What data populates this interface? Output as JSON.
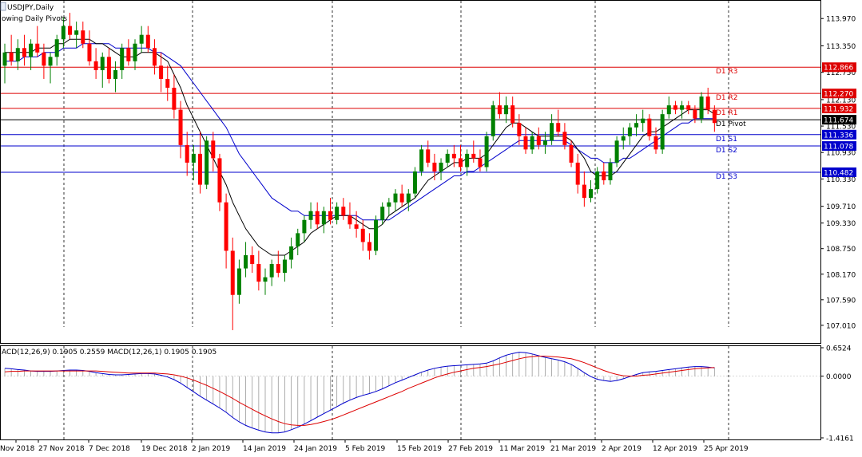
{
  "header": {
    "symbol_label": "USDJPY,Daily",
    "indicator_label": "owing Daily Pivots"
  },
  "macd_label": "ACD(12,26,9) 0.1905 0.2559 MACD(12,26,1) 0.1905 0.1905",
  "colors": {
    "bull": "#008000",
    "bear": "#ff0000",
    "resistance": "#dd0000",
    "support": "#0000cc",
    "ma_fast": "#000000",
    "ma_slow": "#0000cc",
    "macd_line": "#0000cc",
    "signal_line": "#dd0000",
    "histogram": "#9a9a9a"
  },
  "chart_data": {
    "type": "candlestick",
    "price_axis_ticks": [
      "113.970",
      "113.350",
      "112.750",
      "112.130",
      "111.530",
      "110.930",
      "110.330",
      "109.710",
      "109.330",
      "108.750",
      "108.170",
      "107.590",
      "107.010"
    ],
    "date_labels": [
      "Nov 2018",
      "27 Nov 2018",
      "7 Dec 2018",
      "19 Dec 2018",
      "2 Jan 2019",
      "14 Jan 2019",
      "24 Jan 2019",
      "5 Feb 2019",
      "15 Feb 2019",
      "27 Feb 2019",
      "11 Mar 2019",
      "21 Mar 2019",
      "2 Apr 2019",
      "12 Apr 2019",
      "25 Apr 2019"
    ],
    "pivots": [
      {
        "name": "D1 R3",
        "value": 112.866,
        "label": "112.866",
        "kind": "resistance"
      },
      {
        "name": "D1 R2",
        "value": 112.27,
        "label": "112.270",
        "kind": "resistance"
      },
      {
        "name": "D1 R1",
        "value": 111.932,
        "label": "111.932",
        "kind": "resistance"
      },
      {
        "name": "D1 Pivot",
        "value": 111.674,
        "label": "111.674",
        "kind": "pivot"
      },
      {
        "name": "D1 S1",
        "value": 111.336,
        "label": "111.336",
        "kind": "support"
      },
      {
        "name": "D1 S2",
        "value": 111.078,
        "label": "111.078",
        "kind": "support"
      },
      {
        "name": "D1 S3",
        "value": 110.482,
        "label": "110.482",
        "kind": "support"
      }
    ],
    "macd_axis_ticks": [
      "0.6524",
      "0.0000",
      "-1.4161"
    ],
    "macd_ylim": [
      -1.4161,
      0.6524
    ],
    "ylim": [
      106.7,
      114.3
    ],
    "candles": [
      [
        112.9,
        113.4,
        112.5,
        113.2
      ],
      [
        113.2,
        113.6,
        112.9,
        113.0
      ],
      [
        113.0,
        113.5,
        112.8,
        113.3
      ],
      [
        113.3,
        113.6,
        112.9,
        113.1
      ],
      [
        113.1,
        113.5,
        112.8,
        113.4
      ],
      [
        113.4,
        113.8,
        113.1,
        113.2
      ],
      [
        113.2,
        113.4,
        112.6,
        112.9
      ],
      [
        112.9,
        113.2,
        112.5,
        113.1
      ],
      [
        113.1,
        113.6,
        112.9,
        113.5
      ],
      [
        113.5,
        114.0,
        113.3,
        113.8
      ],
      [
        113.8,
        114.1,
        113.5,
        113.6
      ],
      [
        113.6,
        113.9,
        113.3,
        113.7
      ],
      [
        113.7,
        113.9,
        113.3,
        113.4
      ],
      [
        113.4,
        113.7,
        112.9,
        113.0
      ],
      [
        113.0,
        113.3,
        112.6,
        112.8
      ],
      [
        112.8,
        113.2,
        112.4,
        113.1
      ],
      [
        113.1,
        113.3,
        112.5,
        112.6
      ],
      [
        112.6,
        113.0,
        112.3,
        112.8
      ],
      [
        112.8,
        113.4,
        112.6,
        113.3
      ],
      [
        113.3,
        113.5,
        112.9,
        113.0
      ],
      [
        113.0,
        113.5,
        112.8,
        113.4
      ],
      [
        113.4,
        113.8,
        113.2,
        113.6
      ],
      [
        113.6,
        113.8,
        113.2,
        113.3
      ],
      [
        113.3,
        113.5,
        112.7,
        112.9
      ],
      [
        112.9,
        113.2,
        112.3,
        112.6
      ],
      [
        112.6,
        112.9,
        112.1,
        112.4
      ],
      [
        112.4,
        112.7,
        111.7,
        111.9
      ],
      [
        111.9,
        112.1,
        110.8,
        111.1
      ],
      [
        111.1,
        111.4,
        110.4,
        110.7
      ],
      [
        110.7,
        111.1,
        110.3,
        110.9
      ],
      [
        110.9,
        111.4,
        110.0,
        110.2
      ],
      [
        110.2,
        111.3,
        110.1,
        111.2
      ],
      [
        111.2,
        111.4,
        110.5,
        110.8
      ],
      [
        110.8,
        110.9,
        109.6,
        109.8
      ],
      [
        109.8,
        110.0,
        108.3,
        108.7
      ],
      [
        108.7,
        109.0,
        106.9,
        107.7
      ],
      [
        107.7,
        108.5,
        107.5,
        108.3
      ],
      [
        108.3,
        108.9,
        108.1,
        108.6
      ],
      [
        108.6,
        108.8,
        108.2,
        108.4
      ],
      [
        108.4,
        108.7,
        107.8,
        108.0
      ],
      [
        108.0,
        108.3,
        107.7,
        108.1
      ],
      [
        108.1,
        108.5,
        107.9,
        108.4
      ],
      [
        108.4,
        108.7,
        108.1,
        108.2
      ],
      [
        108.2,
        108.6,
        108.0,
        108.5
      ],
      [
        108.5,
        109.0,
        108.3,
        108.8
      ],
      [
        108.8,
        109.2,
        108.6,
        109.1
      ],
      [
        109.1,
        109.5,
        108.9,
        109.4
      ],
      [
        109.4,
        109.8,
        109.2,
        109.6
      ],
      [
        109.6,
        109.8,
        109.2,
        109.3
      ],
      [
        109.3,
        109.7,
        109.1,
        109.6
      ],
      [
        109.6,
        109.9,
        109.3,
        109.4
      ],
      [
        109.4,
        109.8,
        109.3,
        109.7
      ],
      [
        109.7,
        109.9,
        109.4,
        109.5
      ],
      [
        109.5,
        109.8,
        109.2,
        109.3
      ],
      [
        109.3,
        109.6,
        109.0,
        109.2
      ],
      [
        109.2,
        109.4,
        108.7,
        108.9
      ],
      [
        108.9,
        109.1,
        108.5,
        108.7
      ],
      [
        108.7,
        109.5,
        108.6,
        109.4
      ],
      [
        109.4,
        109.8,
        109.3,
        109.7
      ],
      [
        109.7,
        109.9,
        109.5,
        109.8
      ],
      [
        109.8,
        110.1,
        109.6,
        110.0
      ],
      [
        110.0,
        110.2,
        109.7,
        109.8
      ],
      [
        109.8,
        110.1,
        109.6,
        110.0
      ],
      [
        110.0,
        110.6,
        109.9,
        110.5
      ],
      [
        110.5,
        111.1,
        110.4,
        111.0
      ],
      [
        111.0,
        111.2,
        110.6,
        110.7
      ],
      [
        110.7,
        110.9,
        110.3,
        110.5
      ],
      [
        110.5,
        110.8,
        110.3,
        110.7
      ],
      [
        110.7,
        111.0,
        110.6,
        110.9
      ],
      [
        110.9,
        111.1,
        110.6,
        110.8
      ],
      [
        110.8,
        111.1,
        110.5,
        110.6
      ],
      [
        110.6,
        111.0,
        110.4,
        110.9
      ],
      [
        110.9,
        111.2,
        110.7,
        110.8
      ],
      [
        110.8,
        111.0,
        110.5,
        110.6
      ],
      [
        110.6,
        111.4,
        110.5,
        111.3
      ],
      [
        111.3,
        112.1,
        111.2,
        112.0
      ],
      [
        112.0,
        112.3,
        111.7,
        111.8
      ],
      [
        111.8,
        112.2,
        111.6,
        112.0
      ],
      [
        112.0,
        112.2,
        111.5,
        111.6
      ],
      [
        111.6,
        111.8,
        111.1,
        111.3
      ],
      [
        111.3,
        111.5,
        110.9,
        111.0
      ],
      [
        111.0,
        111.4,
        110.9,
        111.3
      ],
      [
        111.3,
        111.5,
        111.0,
        111.1
      ],
      [
        111.1,
        111.4,
        110.9,
        111.2
      ],
      [
        111.2,
        111.8,
        111.1,
        111.6
      ],
      [
        111.6,
        111.9,
        111.3,
        111.4
      ],
      [
        111.4,
        111.6,
        111.0,
        111.1
      ],
      [
        111.1,
        111.2,
        110.6,
        110.7
      ],
      [
        110.7,
        110.9,
        110.0,
        110.2
      ],
      [
        110.2,
        110.5,
        109.7,
        109.9
      ],
      [
        109.9,
        110.3,
        109.8,
        110.1
      ],
      [
        110.1,
        110.6,
        110.0,
        110.5
      ],
      [
        110.5,
        110.7,
        110.2,
        110.3
      ],
      [
        110.3,
        110.8,
        110.2,
        110.7
      ],
      [
        110.7,
        111.3,
        110.6,
        111.2
      ],
      [
        111.2,
        111.5,
        111.0,
        111.3
      ],
      [
        111.3,
        111.6,
        111.1,
        111.5
      ],
      [
        111.5,
        111.8,
        111.3,
        111.6
      ],
      [
        111.6,
        111.9,
        111.4,
        111.7
      ],
      [
        111.7,
        111.8,
        111.2,
        111.3
      ],
      [
        111.3,
        111.5,
        110.9,
        111.0
      ],
      [
        111.0,
        111.9,
        110.9,
        111.8
      ],
      [
        111.8,
        112.2,
        111.7,
        112.0
      ],
      [
        112.0,
        112.1,
        111.8,
        111.9
      ],
      [
        111.9,
        112.1,
        111.7,
        112.0
      ],
      [
        112.0,
        112.1,
        111.8,
        111.9
      ],
      [
        111.9,
        112.0,
        111.6,
        111.7
      ],
      [
        111.7,
        112.3,
        111.6,
        112.2
      ],
      [
        112.2,
        112.4,
        111.8,
        111.9
      ],
      [
        111.9,
        112.0,
        111.4,
        111.6
      ]
    ],
    "ma_fast": [
      113.2,
      113.2,
      113.2,
      113.2,
      113.2,
      113.3,
      113.3,
      113.3,
      113.4,
      113.4,
      113.5,
      113.5,
      113.5,
      113.5,
      113.4,
      113.4,
      113.3,
      113.2,
      113.1,
      113.1,
      113.1,
      113.2,
      113.2,
      113.2,
      113.1,
      113.0,
      112.7,
      112.4,
      112.0,
      111.7,
      111.4,
      111.1,
      110.8,
      110.5,
      110.2,
      109.8,
      109.5,
      109.2,
      109.0,
      108.8,
      108.7,
      108.6,
      108.6,
      108.6,
      108.7,
      108.8,
      108.9,
      109.1,
      109.2,
      109.3,
      109.4,
      109.5,
      109.5,
      109.5,
      109.4,
      109.3,
      109.2,
      109.2,
      109.3,
      109.5,
      109.6,
      109.7,
      109.8,
      109.9,
      110.1,
      110.3,
      110.4,
      110.5,
      110.6,
      110.7,
      110.7,
      110.8,
      110.8,
      110.8,
      110.9,
      111.1,
      111.3,
      111.5,
      111.6,
      111.6,
      111.5,
      111.4,
      111.3,
      111.3,
      111.3,
      111.3,
      111.3,
      111.2,
      111.0,
      110.8,
      110.5,
      110.4,
      110.4,
      110.4,
      110.5,
      110.7,
      110.9,
      111.1,
      111.3,
      111.4,
      111.4,
      111.5,
      111.6,
      111.7,
      111.8,
      111.9,
      111.9,
      111.9,
      111.9,
      111.8
    ],
    "ma_slow": [
      113.0,
      113.0,
      113.0,
      113.1,
      113.1,
      113.1,
      113.2,
      113.2,
      113.2,
      113.3,
      113.3,
      113.3,
      113.4,
      113.4,
      113.4,
      113.4,
      113.4,
      113.3,
      113.3,
      113.3,
      113.3,
      113.3,
      113.3,
      113.2,
      113.2,
      113.1,
      113.0,
      112.9,
      112.7,
      112.5,
      112.3,
      112.1,
      111.9,
      111.7,
      111.5,
      111.2,
      110.9,
      110.7,
      110.5,
      110.3,
      110.1,
      109.9,
      109.8,
      109.7,
      109.6,
      109.6,
      109.5,
      109.5,
      109.5,
      109.5,
      109.5,
      109.5,
      109.5,
      109.5,
      109.5,
      109.4,
      109.4,
      109.4,
      109.4,
      109.4,
      109.5,
      109.6,
      109.7,
      109.8,
      109.9,
      110.0,
      110.1,
      110.2,
      110.3,
      110.4,
      110.4,
      110.5,
      110.5,
      110.6,
      110.7,
      110.8,
      110.9,
      111.0,
      111.1,
      111.2,
      111.2,
      111.2,
      111.2,
      111.2,
      111.2,
      111.2,
      111.2,
      111.1,
      111.0,
      110.9,
      110.8,
      110.8,
      110.7,
      110.7,
      110.7,
      110.8,
      110.8,
      110.9,
      111.0,
      111.1,
      111.2,
      111.3,
      111.4,
      111.5,
      111.6,
      111.6,
      111.7,
      111.7,
      111.7,
      111.7
    ],
    "macd": [
      0.18,
      0.17,
      0.15,
      0.14,
      0.12,
      0.11,
      0.11,
      0.11,
      0.12,
      0.13,
      0.14,
      0.14,
      0.13,
      0.11,
      0.08,
      0.06,
      0.04,
      0.03,
      0.03,
      0.04,
      0.05,
      0.06,
      0.06,
      0.05,
      0.02,
      -0.02,
      -0.08,
      -0.16,
      -0.26,
      -0.36,
      -0.46,
      -0.55,
      -0.64,
      -0.73,
      -0.83,
      -0.95,
      -1.05,
      -1.13,
      -1.19,
      -1.24,
      -1.28,
      -1.3,
      -1.3,
      -1.28,
      -1.23,
      -1.17,
      -1.1,
      -1.02,
      -0.94,
      -0.86,
      -0.78,
      -0.7,
      -0.62,
      -0.55,
      -0.49,
      -0.44,
      -0.4,
      -0.35,
      -0.29,
      -0.22,
      -0.15,
      -0.09,
      -0.03,
      0.03,
      0.09,
      0.14,
      0.18,
      0.21,
      0.23,
      0.24,
      0.25,
      0.26,
      0.27,
      0.28,
      0.3,
      0.35,
      0.42,
      0.48,
      0.52,
      0.55,
      0.54,
      0.51,
      0.47,
      0.43,
      0.4,
      0.37,
      0.33,
      0.27,
      0.18,
      0.08,
      -0.01,
      -0.07,
      -0.1,
      -0.12,
      -0.1,
      -0.06,
      -0.01,
      0.04,
      0.08,
      0.1,
      0.11,
      0.13,
      0.15,
      0.17,
      0.19,
      0.21,
      0.22,
      0.22,
      0.21,
      0.19
    ],
    "signal": [
      0.1,
      0.11,
      0.11,
      0.12,
      0.12,
      0.12,
      0.12,
      0.12,
      0.12,
      0.12,
      0.12,
      0.12,
      0.12,
      0.12,
      0.12,
      0.11,
      0.1,
      0.09,
      0.08,
      0.07,
      0.07,
      0.07,
      0.07,
      0.07,
      0.06,
      0.05,
      0.03,
      0.0,
      -0.04,
      -0.09,
      -0.15,
      -0.21,
      -0.28,
      -0.35,
      -0.43,
      -0.51,
      -0.6,
      -0.68,
      -0.76,
      -0.84,
      -0.91,
      -0.98,
      -1.04,
      -1.09,
      -1.12,
      -1.13,
      -1.13,
      -1.11,
      -1.08,
      -1.04,
      -1.0,
      -0.95,
      -0.89,
      -0.83,
      -0.77,
      -0.71,
      -0.65,
      -0.59,
      -0.53,
      -0.47,
      -0.41,
      -0.35,
      -0.28,
      -0.22,
      -0.16,
      -0.1,
      -0.04,
      0.01,
      0.05,
      0.09,
      0.12,
      0.15,
      0.18,
      0.2,
      0.22,
      0.25,
      0.28,
      0.32,
      0.36,
      0.4,
      0.43,
      0.45,
      0.46,
      0.46,
      0.45,
      0.44,
      0.42,
      0.4,
      0.36,
      0.31,
      0.25,
      0.19,
      0.13,
      0.08,
      0.04,
      0.01,
      0.0,
      0.0,
      0.02,
      0.03,
      0.05,
      0.07,
      0.09,
      0.11,
      0.13,
      0.15,
      0.17,
      0.18,
      0.19,
      0.2
    ]
  }
}
